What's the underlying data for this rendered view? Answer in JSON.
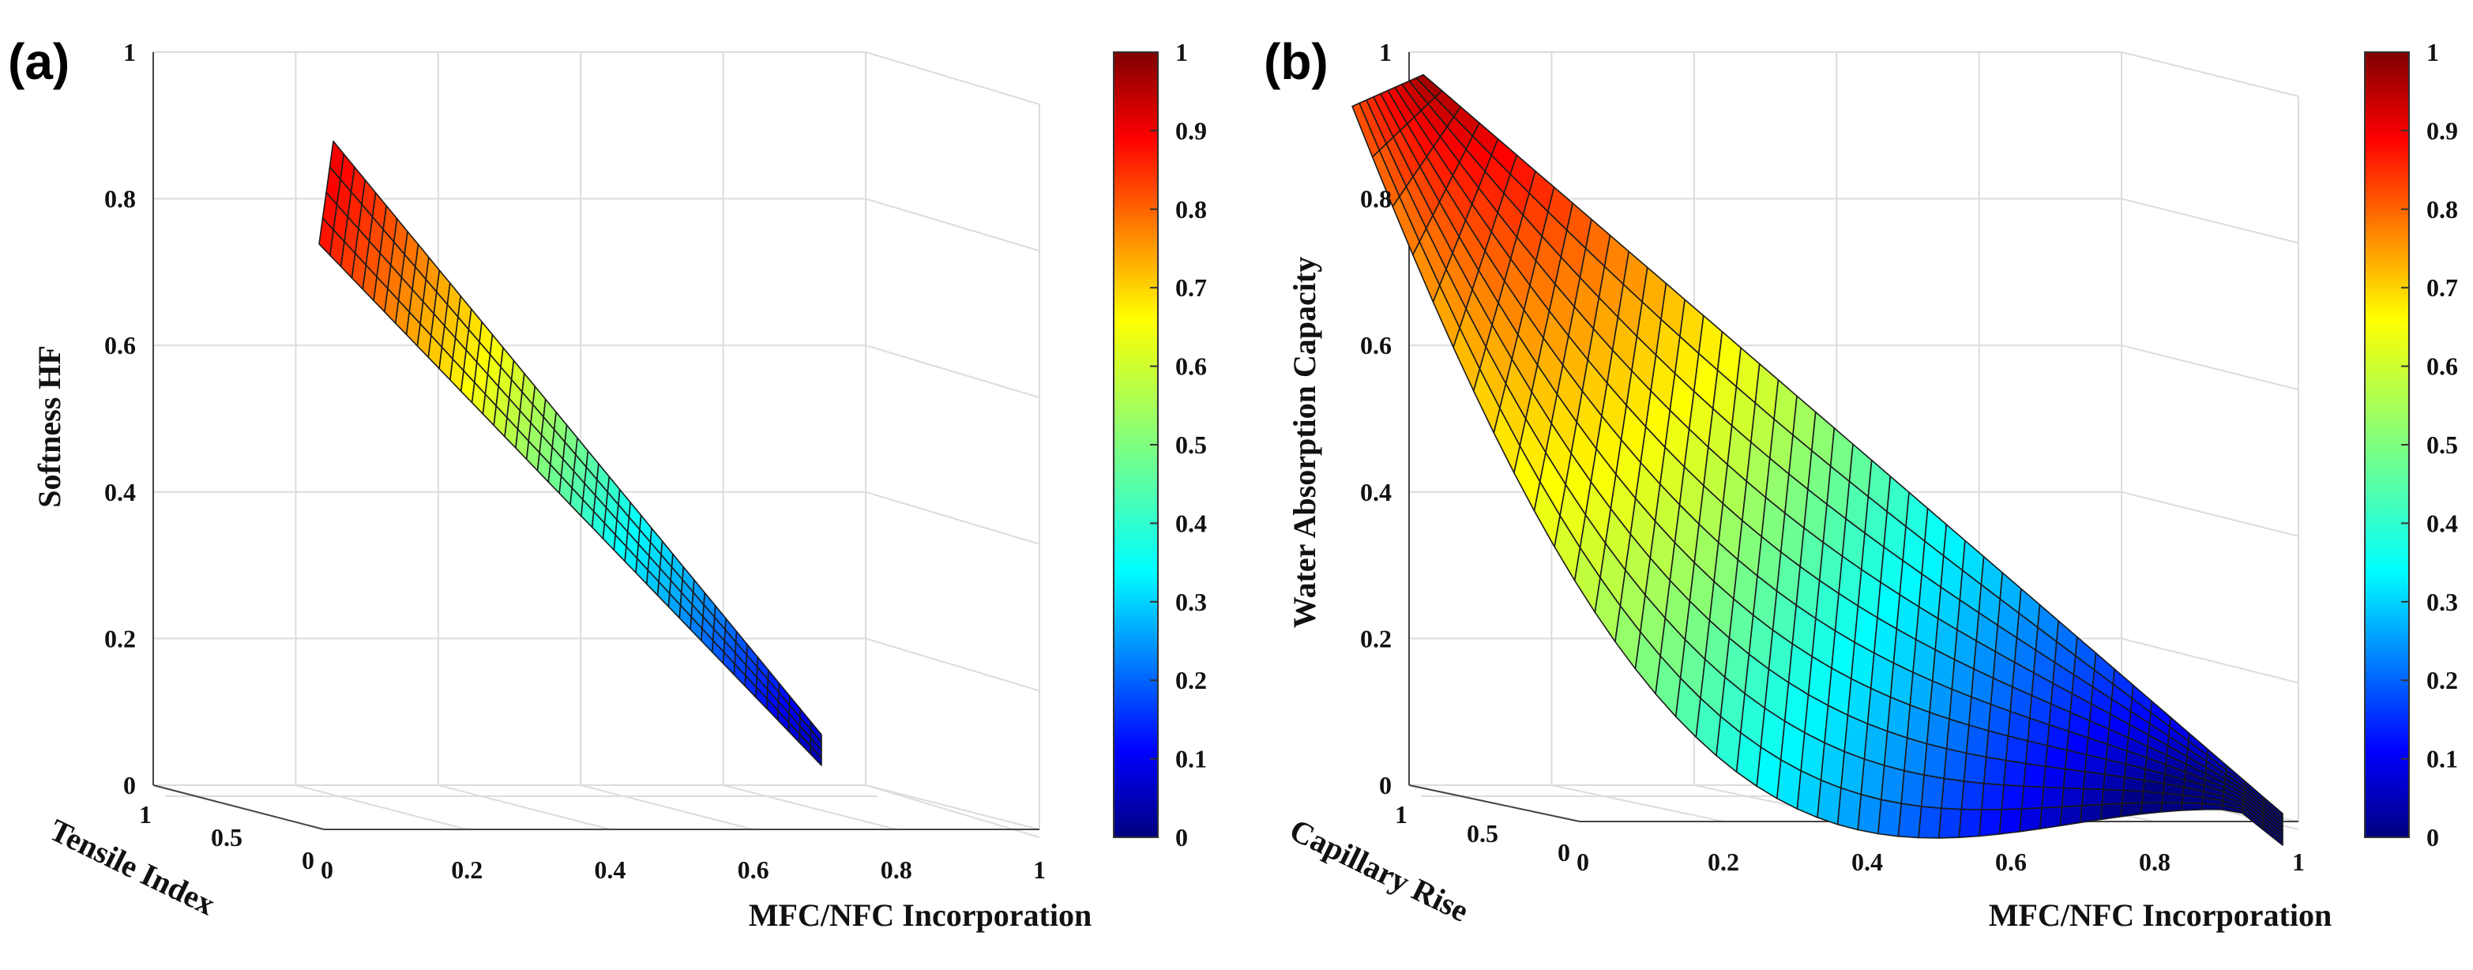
{
  "chart_data": [
    {
      "type": "surface3d",
      "panel_label": "(a)",
      "zlabel": "Softness HF",
      "xlabel": "MFC/NFC Incorporation",
      "ylabel": "Tensile Index",
      "z_ticks": [
        "0",
        "0.2",
        "0.4",
        "0.6",
        "0.8",
        "1"
      ],
      "x_ticks": [
        "0",
        "0.2",
        "0.4",
        "0.6",
        "0.8",
        "1"
      ],
      "y_ticks": [
        "1",
        "0.5",
        "0"
      ],
      "xlim": [
        0,
        1
      ],
      "ylim": [
        0,
        1
      ],
      "zlim": [
        0,
        1
      ],
      "surface": {
        "z_start": 0.9,
        "z_end": 0.08,
        "x_start": 0.0,
        "x_end": 0.68,
        "band": "narrow"
      },
      "colorbar": {
        "min": 0,
        "max": 1,
        "ticks": [
          "0",
          "0.1",
          "0.2",
          "0.3",
          "0.4",
          "0.5",
          "0.6",
          "0.7",
          "0.8",
          "0.9",
          "1"
        ],
        "colormap": "jet"
      },
      "grid": true
    },
    {
      "type": "surface3d",
      "panel_label": "(b)",
      "zlabel": "Water Absorption Capacity",
      "xlabel": "MFC/NFC Incorporation",
      "ylabel": "Capillary Rise",
      "z_ticks": [
        "0",
        "0.2",
        "0.4",
        "0.6",
        "0.8",
        "1"
      ],
      "x_ticks": [
        "0",
        "0.2",
        "0.4",
        "0.6",
        "0.8",
        "1"
      ],
      "y_ticks": [
        "1",
        "0.5",
        "0"
      ],
      "xlim": [
        0,
        1
      ],
      "ylim": [
        0,
        1
      ],
      "zlim": [
        0,
        1
      ],
      "surface": {
        "z_start": 0.98,
        "z_end": 0.0,
        "x_start": 0.0,
        "x_end": 0.98,
        "band": "wide"
      },
      "colorbar": {
        "min": 0,
        "max": 1,
        "ticks": [
          "0",
          "0.1",
          "0.2",
          "0.3",
          "0.4",
          "0.5",
          "0.6",
          "0.7",
          "0.8",
          "0.9",
          "1"
        ],
        "colormap": "jet"
      },
      "grid": true
    }
  ]
}
